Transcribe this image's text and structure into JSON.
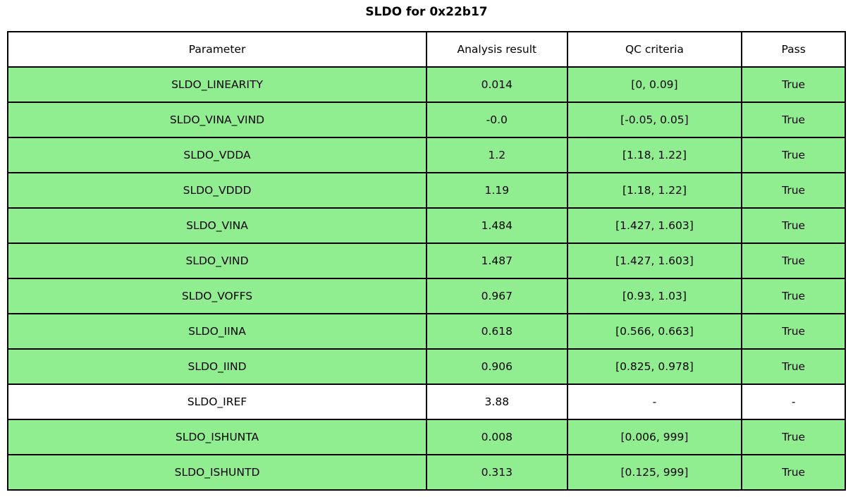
{
  "title": "SLDO for 0x22b17",
  "colors": {
    "pass_row_green": "#90ee90",
    "neutral_row_white": "#ffffff",
    "border": "#000000",
    "text": "#000000"
  },
  "chart_data": {
    "type": "table",
    "title": "SLDO for 0x22b17",
    "columns": [
      "Parameter",
      "Analysis result",
      "QC criteria",
      "Pass"
    ],
    "rows": [
      {
        "parameter": "SLDO_LINEARITY",
        "result": "0.014",
        "criteria": "[0, 0.09]",
        "pass": "True",
        "row_color": "#90ee90"
      },
      {
        "parameter": "SLDO_VINA_VIND",
        "result": "-0.0",
        "criteria": "[-0.05, 0.05]",
        "pass": "True",
        "row_color": "#90ee90"
      },
      {
        "parameter": "SLDO_VDDA",
        "result": "1.2",
        "criteria": "[1.18, 1.22]",
        "pass": "True",
        "row_color": "#90ee90"
      },
      {
        "parameter": "SLDO_VDDD",
        "result": "1.19",
        "criteria": "[1.18, 1.22]",
        "pass": "True",
        "row_color": "#90ee90"
      },
      {
        "parameter": "SLDO_VINA",
        "result": "1.484",
        "criteria": "[1.427, 1.603]",
        "pass": "True",
        "row_color": "#90ee90"
      },
      {
        "parameter": "SLDO_VIND",
        "result": "1.487",
        "criteria": "[1.427, 1.603]",
        "pass": "True",
        "row_color": "#90ee90"
      },
      {
        "parameter": "SLDO_VOFFS",
        "result": "0.967",
        "criteria": "[0.93, 1.03]",
        "pass": "True",
        "row_color": "#90ee90"
      },
      {
        "parameter": "SLDO_IINA",
        "result": "0.618",
        "criteria": "[0.566, 0.663]",
        "pass": "True",
        "row_color": "#90ee90"
      },
      {
        "parameter": "SLDO_IIND",
        "result": "0.906",
        "criteria": "[0.825, 0.978]",
        "pass": "True",
        "row_color": "#90ee90"
      },
      {
        "parameter": "SLDO_IREF",
        "result": "3.88",
        "criteria": "-",
        "pass": "-",
        "row_color": "#ffffff"
      },
      {
        "parameter": "SLDO_ISHUNTA",
        "result": "0.008",
        "criteria": "[0.006, 999]",
        "pass": "True",
        "row_color": "#90ee90"
      },
      {
        "parameter": "SLDO_ISHUNTD",
        "result": "0.313",
        "criteria": "[0.125, 999]",
        "pass": "True",
        "row_color": "#90ee90"
      }
    ]
  }
}
